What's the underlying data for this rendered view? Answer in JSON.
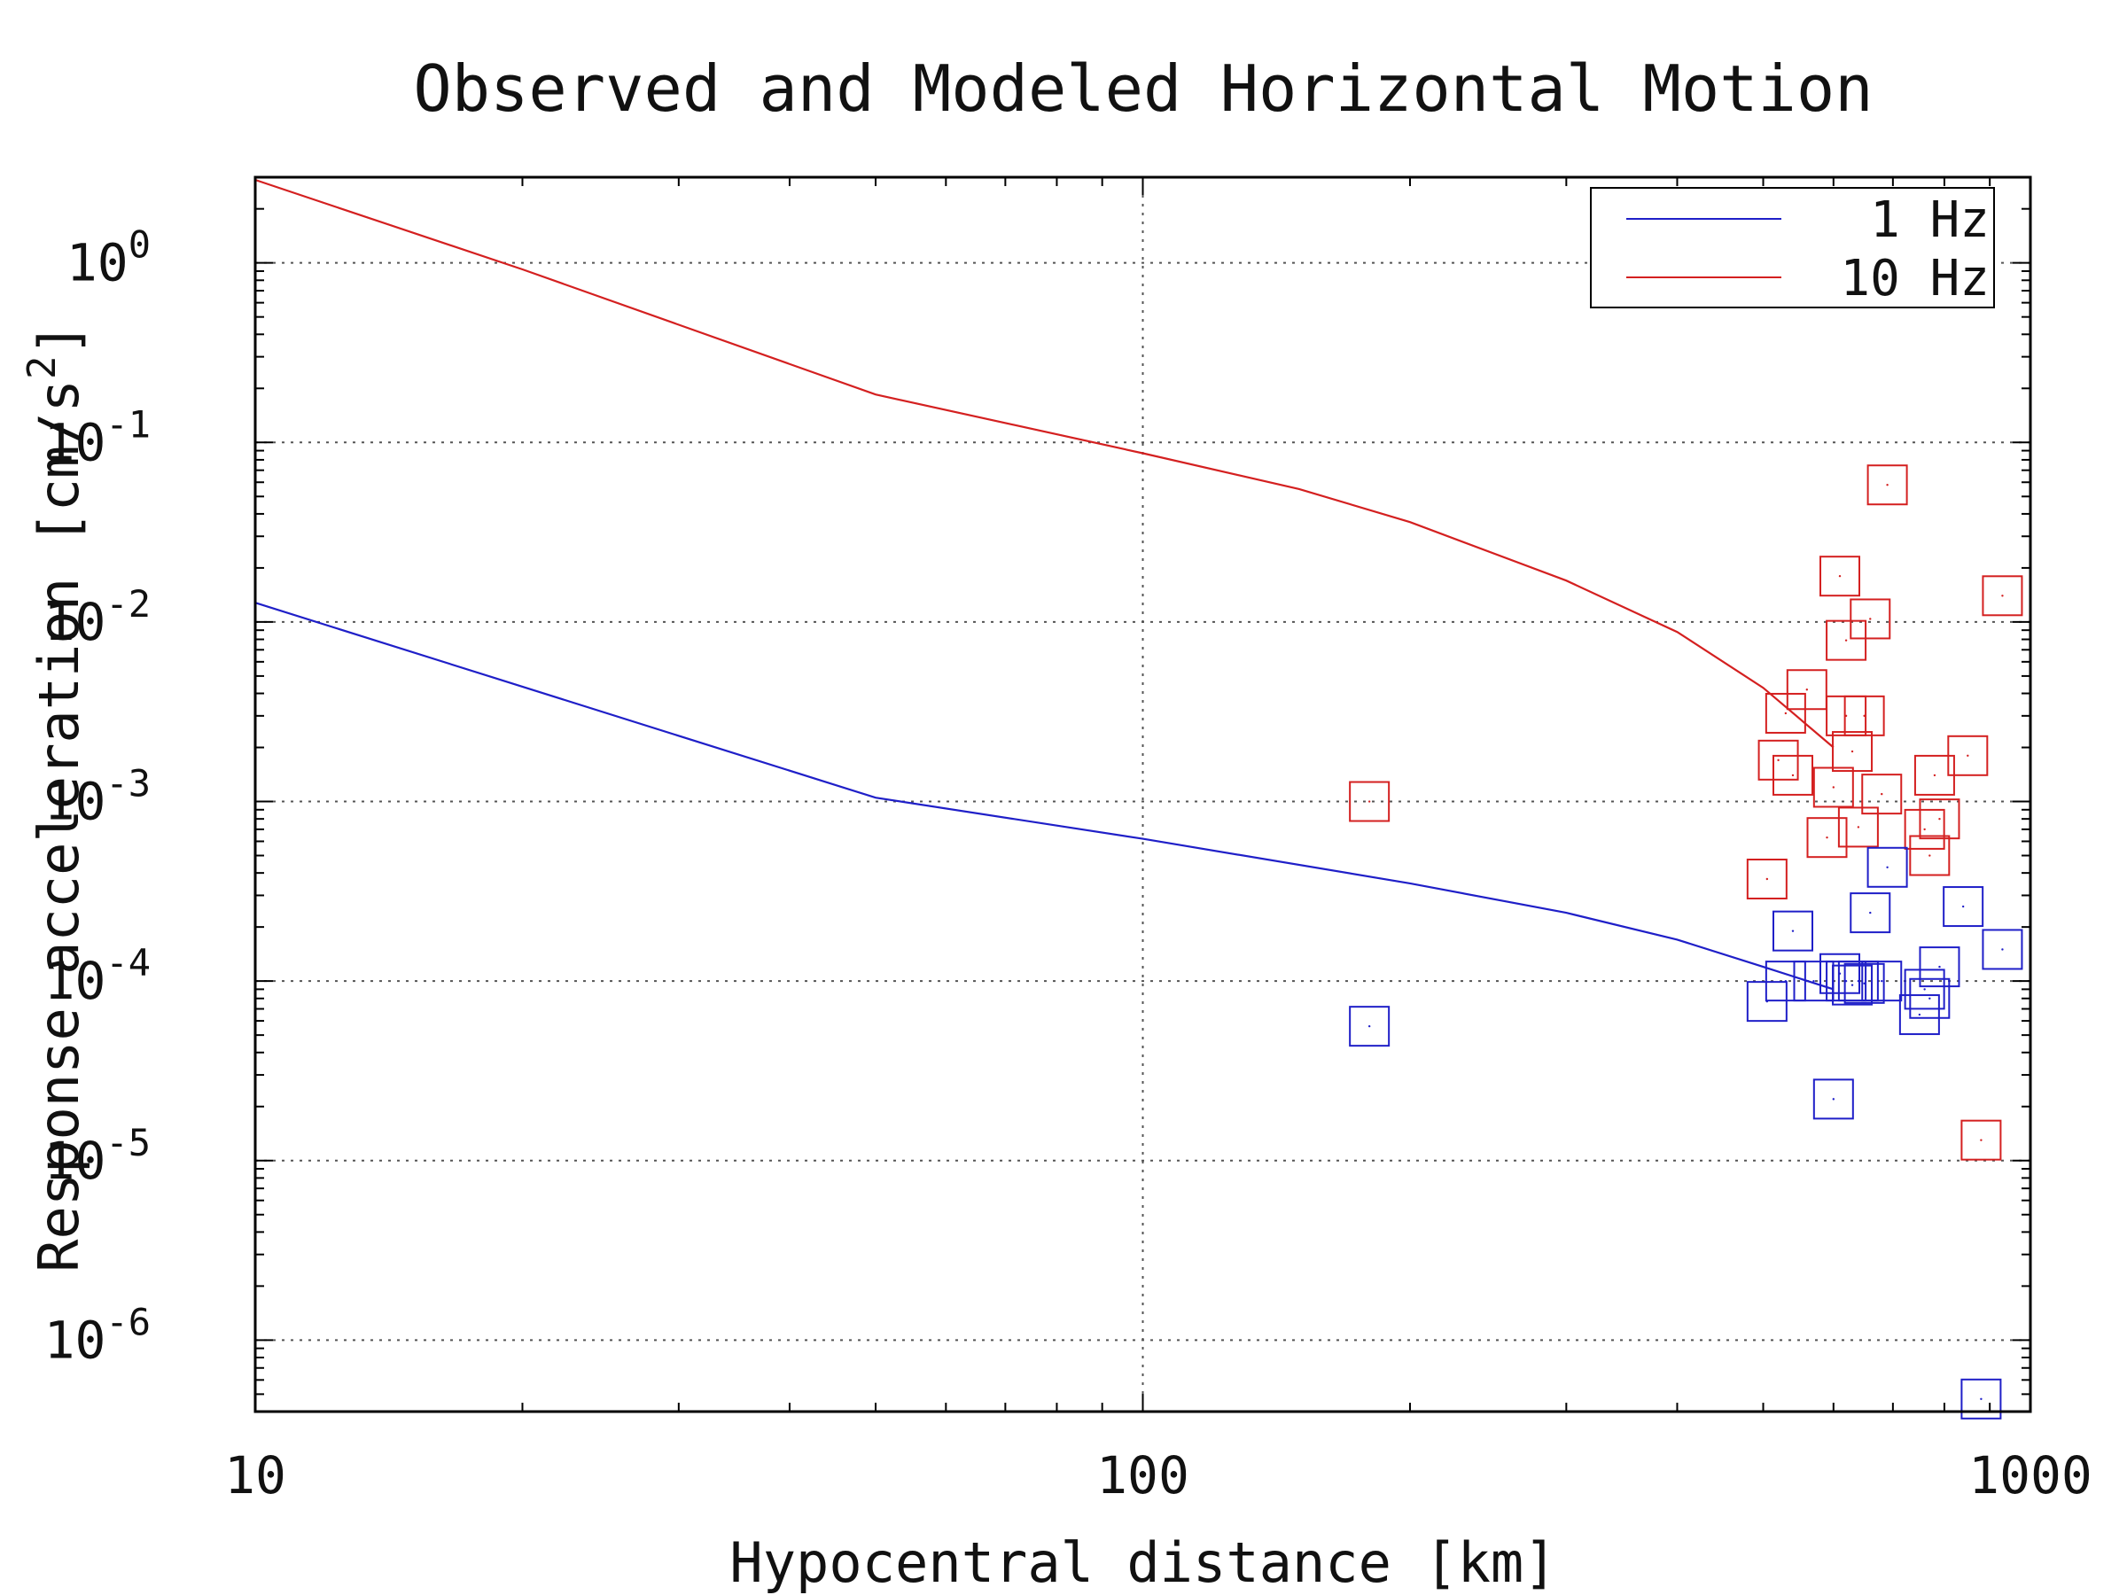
{
  "chart_data": {
    "type": "scatter",
    "title": "Observed and Modeled Horizontal Motion",
    "xlabel": "Hypocentral distance [km]",
    "ylabel_main": "Response acceleration [cm/s",
    "ylabel_sup": "2",
    "ylabel_close": "]",
    "xscale": "log",
    "yscale": "log",
    "xlim": [
      10,
      1000
    ],
    "ylim": [
      4e-07,
      3
    ],
    "xticks": [
      {
        "value": 10,
        "label": "10"
      },
      {
        "value": 100,
        "label": "100"
      },
      {
        "value": 1000,
        "label": "1000"
      }
    ],
    "yticks": [
      {
        "value": 1,
        "base": "10",
        "exp": "0"
      },
      {
        "value": 0.1,
        "base": "10",
        "exp": "-1"
      },
      {
        "value": 0.01,
        "base": "10",
        "exp": "-2"
      },
      {
        "value": 0.001,
        "base": "10",
        "exp": "-3"
      },
      {
        "value": 0.0001,
        "base": "10",
        "exp": "-4"
      },
      {
        "value": 1e-05,
        "base": "10",
        "exp": "-5"
      },
      {
        "value": 1e-06,
        "base": "10",
        "exp": "-6"
      }
    ],
    "grid": true,
    "legend_position": "top-right",
    "colors": {
      "blue": "#1f1fc8",
      "red": "#d42020"
    },
    "lines": [
      {
        "name": "1 Hz",
        "color": "#1f1fc8",
        "x": [
          10,
          50,
          100,
          200,
          300,
          400,
          500,
          600
        ],
        "y": [
          0.0128,
          0.00105,
          0.00062,
          0.00035,
          0.00024,
          0.00017,
          0.00012,
          9e-05
        ]
      },
      {
        "name": "10 Hz",
        "color": "#d42020",
        "x": [
          10,
          20,
          50,
          100,
          150,
          200,
          300,
          400,
          500,
          600
        ],
        "y": [
          2.9,
          0.92,
          0.185,
          0.087,
          0.055,
          0.036,
          0.017,
          0.0088,
          0.0043,
          0.002
        ]
      }
    ],
    "scatter": [
      {
        "color": "#d42020",
        "points": [
          [
            180,
            0.001
          ],
          [
            505,
            0.00037
          ],
          [
            520,
            0.0017
          ],
          [
            530,
            0.0031
          ],
          [
            540,
            0.0014
          ],
          [
            560,
            0.0042
          ],
          [
            590,
            0.00063
          ],
          [
            600,
            0.0012
          ],
          [
            610,
            0.018
          ],
          [
            620,
            0.003
          ],
          [
            620,
            0.0079
          ],
          [
            630,
            0.0019
          ],
          [
            640,
            0.00072
          ],
          [
            650,
            0.003
          ],
          [
            660,
            0.0104
          ],
          [
            680,
            0.0011
          ],
          [
            690,
            0.058
          ],
          [
            760,
            0.0007
          ],
          [
            770,
            0.0005
          ],
          [
            780,
            0.0014
          ],
          [
            790,
            0.0008
          ],
          [
            850,
            0.0018
          ],
          [
            880,
            1.3e-05
          ],
          [
            930,
            0.014
          ]
        ]
      },
      {
        "color": "#1f1fc8",
        "points": [
          [
            180,
            5.6e-05
          ],
          [
            505,
            7.7e-05
          ],
          [
            530,
            0.0001
          ],
          [
            540,
            0.00019
          ],
          [
            570,
            0.0001
          ],
          [
            600,
            2.2e-05
          ],
          [
            610,
            0.00011
          ],
          [
            620,
            0.0001
          ],
          [
            630,
            9.5e-05
          ],
          [
            640,
            0.0001
          ],
          [
            650,
            9.7e-05
          ],
          [
            660,
            0.00024
          ],
          [
            680,
            0.0001
          ],
          [
            690,
            0.00043
          ],
          [
            750,
            6.5e-05
          ],
          [
            760,
            9e-05
          ],
          [
            770,
            8e-05
          ],
          [
            790,
            0.00012
          ],
          [
            840,
            0.00026
          ],
          [
            880,
            4.7e-07
          ],
          [
            930,
            0.00015
          ]
        ]
      }
    ]
  }
}
